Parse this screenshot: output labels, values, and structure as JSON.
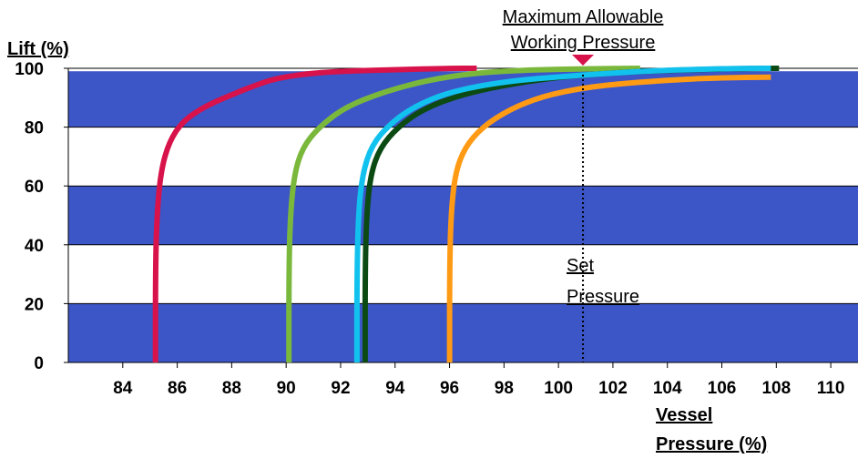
{
  "chart_data": {
    "type": "line",
    "title": "",
    "ylabel": "Lift (%)",
    "xlabel_lines": [
      "Vessel",
      "Pressure (%)"
    ],
    "xlim": [
      82,
      111
    ],
    "ylim": [
      0,
      100
    ],
    "x_ticks": [
      84,
      86,
      88,
      90,
      92,
      94,
      96,
      98,
      100,
      102,
      104,
      106,
      108,
      110
    ],
    "y_ticks": [
      0,
      20,
      40,
      60,
      80,
      100
    ],
    "band_color": "#3c56c8",
    "bands": [
      [
        0,
        20
      ],
      [
        40,
        60
      ],
      [
        80,
        99
      ]
    ],
    "annotations": {
      "mawp": {
        "lines": [
          "Maximum Allowable",
          "Working Pressure"
        ],
        "x": 100.9
      },
      "set_pressure": {
        "lines": [
          "Set",
          "Pressure"
        ],
        "x": 100.9
      }
    },
    "series": [
      {
        "color": "#d8124a",
        "points": [
          [
            85.2,
            0
          ],
          [
            85.2,
            30
          ],
          [
            85.25,
            50
          ],
          [
            85.4,
            65
          ],
          [
            85.7,
            75
          ],
          [
            86.2,
            82
          ],
          [
            87,
            87
          ],
          [
            88,
            91
          ],
          [
            88.8,
            94
          ],
          [
            89.6,
            96.5
          ],
          [
            90.6,
            98
          ],
          [
            92,
            99
          ],
          [
            94,
            99.5
          ],
          [
            96,
            100
          ],
          [
            97,
            100
          ]
        ]
      },
      {
        "color": "#7ab83c",
        "points": [
          [
            90.1,
            0
          ],
          [
            90.1,
            30
          ],
          [
            90.15,
            50
          ],
          [
            90.3,
            64
          ],
          [
            90.6,
            73
          ],
          [
            91.2,
            80
          ],
          [
            92.2,
            87
          ],
          [
            93.6,
            92
          ],
          [
            95.2,
            96
          ],
          [
            97,
            98.5
          ],
          [
            99,
            99.5
          ],
          [
            101,
            99.8
          ],
          [
            103,
            100
          ]
        ]
      },
      {
        "color": "#0c4a14",
        "points": [
          [
            92.9,
            0
          ],
          [
            92.9,
            30
          ],
          [
            92.95,
            50
          ],
          [
            93.1,
            64
          ],
          [
            93.45,
            73
          ],
          [
            94.1,
            80
          ],
          [
            95,
            86
          ],
          [
            96.4,
            91
          ],
          [
            98.4,
            95
          ],
          [
            100.5,
            97.5
          ],
          [
            103,
            99
          ],
          [
            106,
            99.8
          ],
          [
            108.1,
            100
          ]
        ]
      },
      {
        "color": "#12c2ee",
        "points": [
          [
            92.6,
            0
          ],
          [
            92.6,
            30
          ],
          [
            92.65,
            50
          ],
          [
            92.8,
            64
          ],
          [
            93.15,
            74
          ],
          [
            93.8,
            81
          ],
          [
            94.7,
            87
          ],
          [
            96,
            92
          ],
          [
            98,
            95.5
          ],
          [
            100.5,
            97.5
          ],
          [
            103,
            99
          ],
          [
            105.5,
            99.8
          ],
          [
            107.8,
            100
          ]
        ]
      },
      {
        "color": "#ff9a14",
        "points": [
          [
            96,
            0
          ],
          [
            96,
            30
          ],
          [
            96.05,
            50
          ],
          [
            96.2,
            64
          ],
          [
            96.55,
            73
          ],
          [
            97.2,
            80
          ],
          [
            98.2,
            86
          ],
          [
            99.4,
            90.5
          ],
          [
            101,
            93.5
          ],
          [
            102.5,
            95
          ],
          [
            104.5,
            96.2
          ],
          [
            106,
            96.8
          ],
          [
            107.8,
            97
          ]
        ]
      }
    ]
  }
}
